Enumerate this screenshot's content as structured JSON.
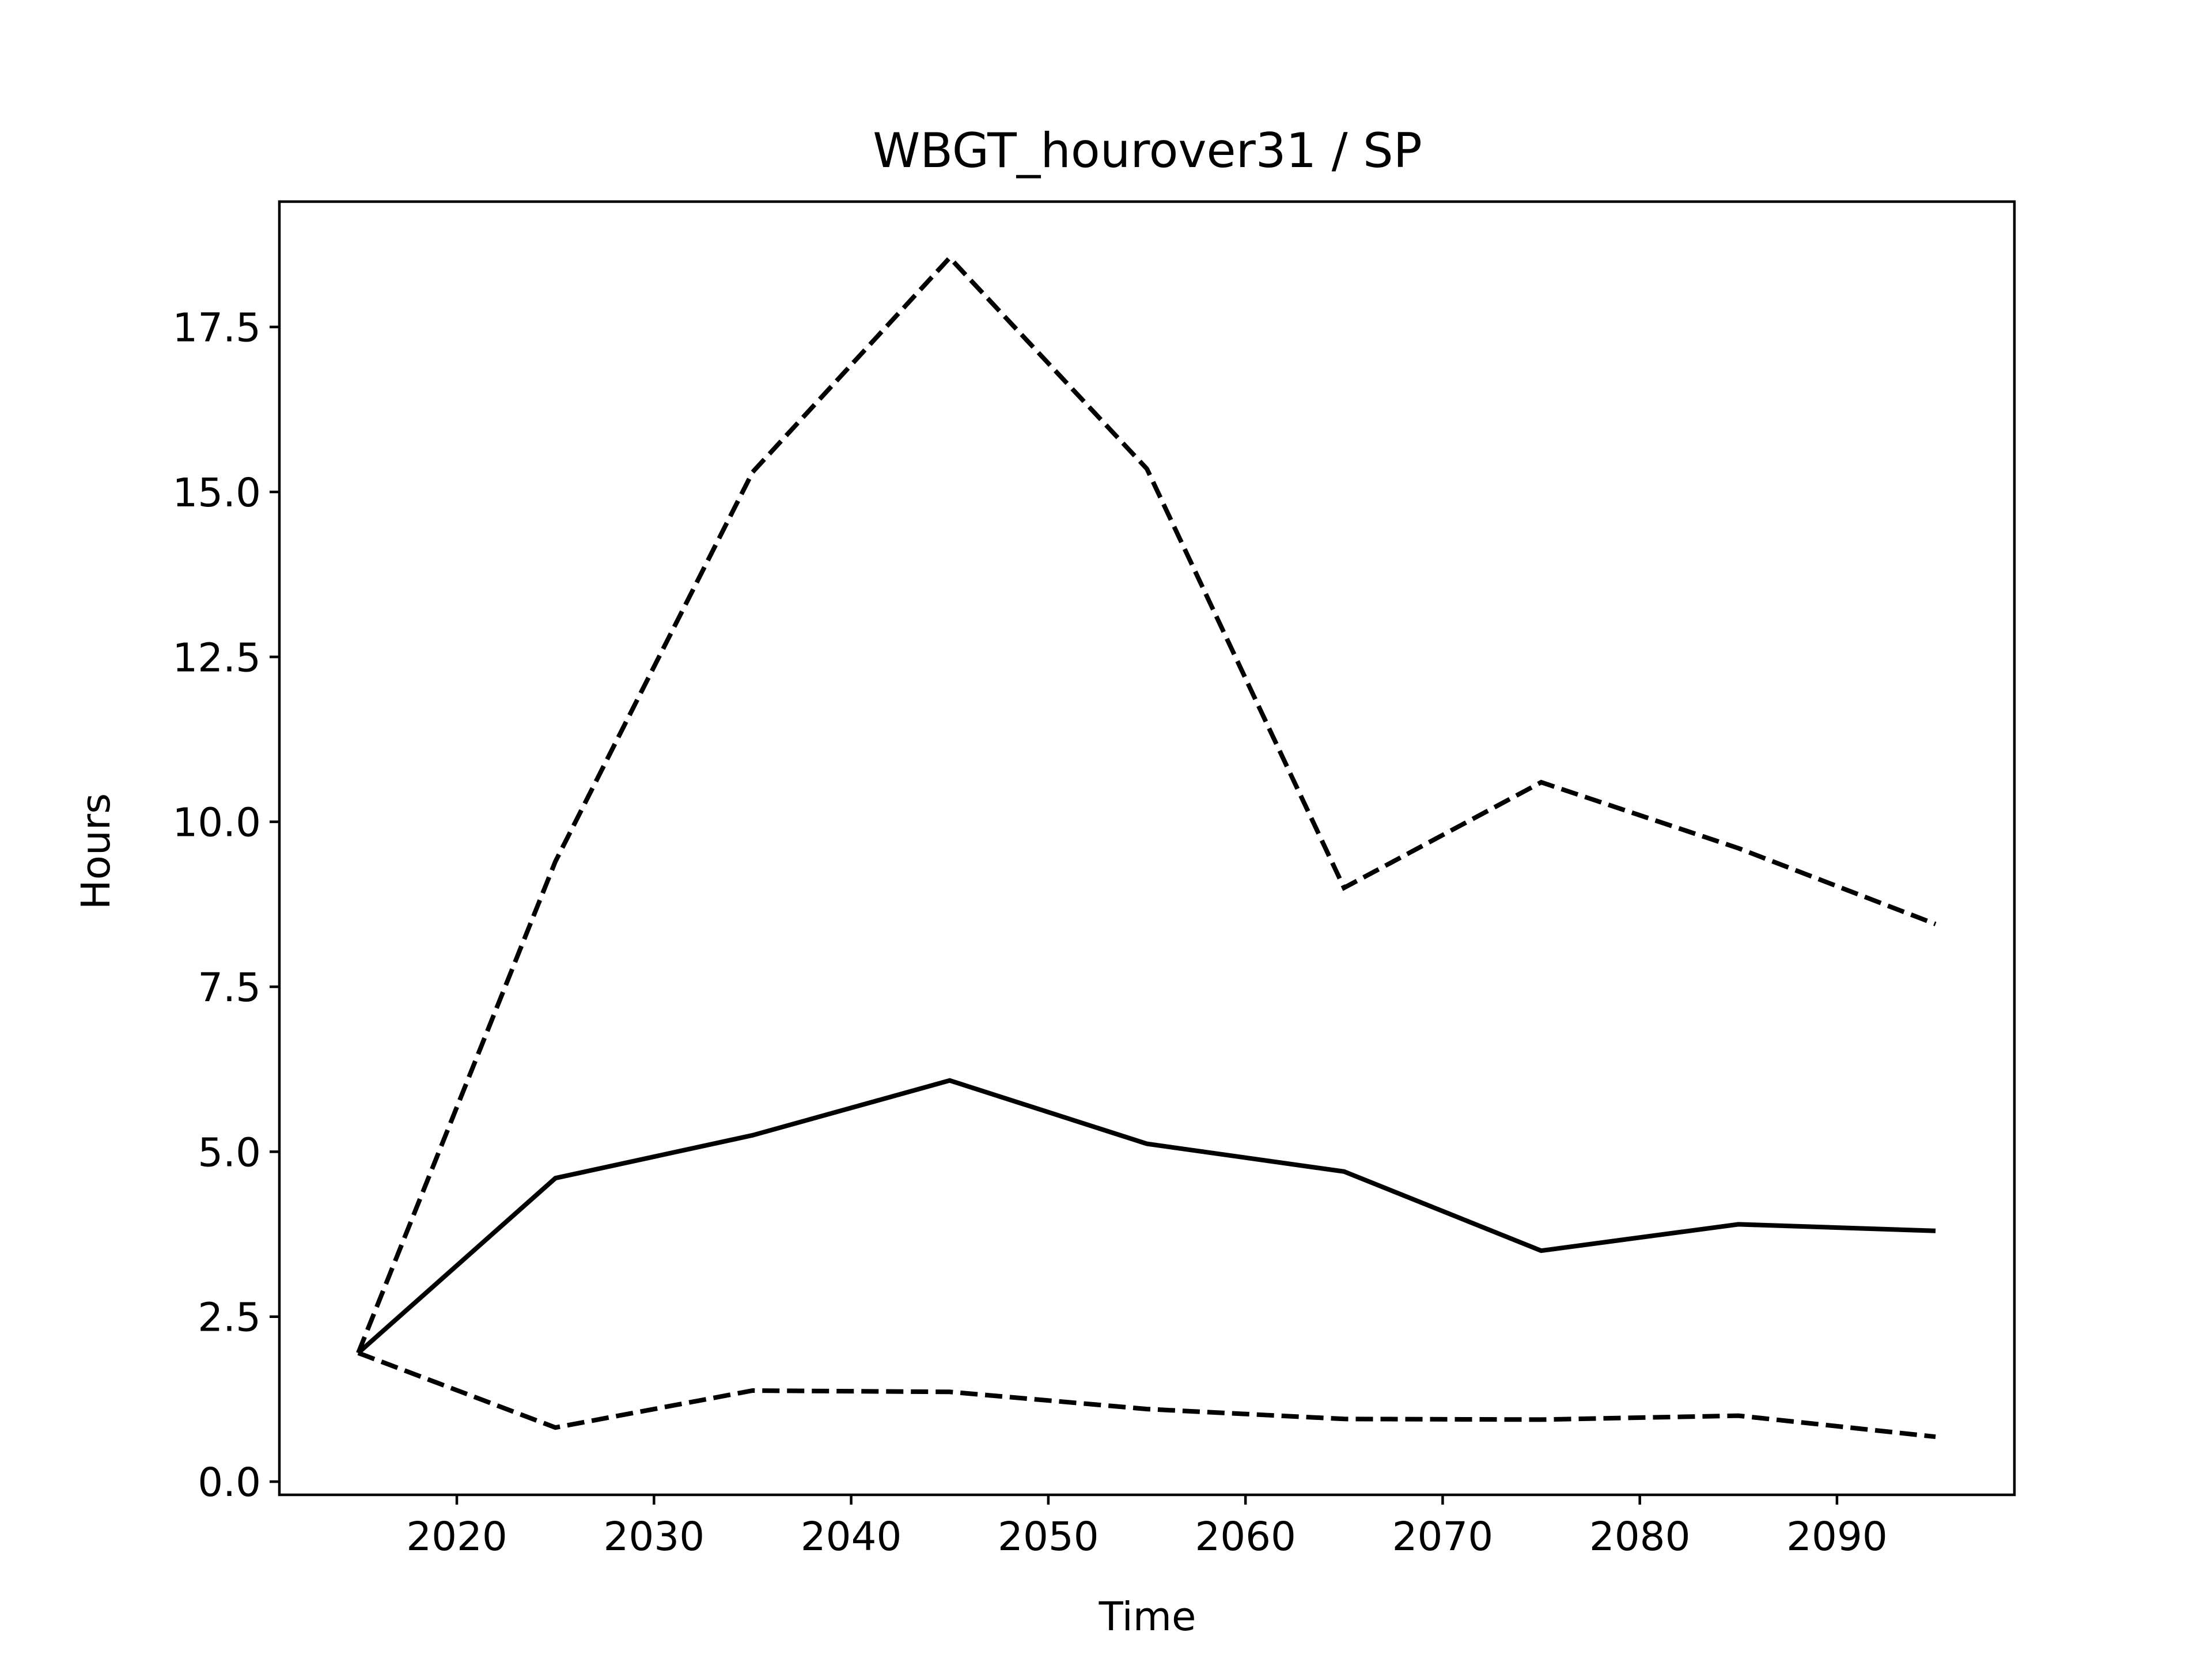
{
  "chart_data": {
    "type": "line",
    "title": "WBGT_hourover31 / SP",
    "xlabel": "Time",
    "ylabel": "Hours",
    "xlim": [
      2011,
      2099
    ],
    "ylim": [
      -0.2,
      19.4
    ],
    "x_ticks": [
      2020,
      2030,
      2040,
      2050,
      2060,
      2070,
      2080,
      2090
    ],
    "y_ticks": [
      0.0,
      2.5,
      5.0,
      7.5,
      10.0,
      12.5,
      15.0,
      17.5
    ],
    "y_tick_labels": [
      "0.0",
      "2.5",
      "5.0",
      "7.5",
      "10.0",
      "12.5",
      "15.0",
      "17.5"
    ],
    "x_tick_labels": [
      "2020",
      "2030",
      "2040",
      "2050",
      "2060",
      "2070",
      "2080",
      "2090"
    ],
    "grid": false,
    "legend": false,
    "x": [
      2015,
      2025,
      2035,
      2045,
      2055,
      2065,
      2075,
      2085,
      2095
    ],
    "series": [
      {
        "style": "solid",
        "color": "#000000",
        "values": [
          1.95,
          4.6,
          5.25,
          6.08,
          5.12,
          4.7,
          3.5,
          3.9,
          3.8
        ]
      },
      {
        "style": "dashed",
        "color": "#000000",
        "values": [
          1.95,
          9.4,
          15.3,
          18.55,
          15.35,
          9.0,
          10.6,
          9.6,
          8.45
        ]
      },
      {
        "style": "dashed",
        "color": "#000000",
        "values": [
          1.95,
          0.82,
          1.38,
          1.36,
          1.1,
          0.95,
          0.94,
          1.0,
          0.68
        ]
      }
    ]
  }
}
